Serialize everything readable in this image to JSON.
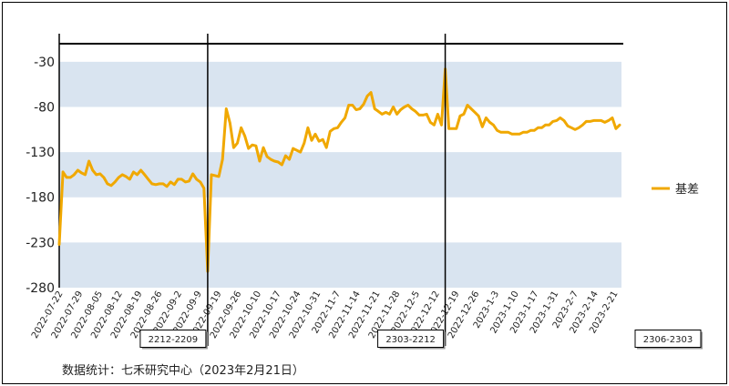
{
  "chart_data": {
    "type": "line",
    "title": "",
    "xlabel": "",
    "ylabel": "",
    "ylim": [
      -280,
      -10
    ],
    "y_ticks": [
      -30,
      -80,
      -130,
      -180,
      -230,
      -280
    ],
    "x_tick_labels": [
      "2022-07-22",
      "2022-07-29",
      "2022-08-05",
      "2022-08-12",
      "2022-08-19",
      "2022-08-26",
      "2022-09-2",
      "2022-09-9",
      "2022-09-19",
      "2022-09-26",
      "2022-10-10",
      "2022-10-17",
      "2022-10-24",
      "2022-10-31",
      "2022-11-7",
      "2022-11-14",
      "2022-11-21",
      "2022-11-28",
      "2022-12-5",
      "2022-12-12",
      "2022-12-19",
      "2022-12-26",
      "2023-1-3",
      "2023-1-10",
      "2023-1-17",
      "2023-1-31",
      "2023-2-7",
      "2023-2-14",
      "2023-2-21"
    ],
    "series": [
      {
        "name": "基差",
        "color": "#f0a800",
        "values": [
          -232,
          -152,
          -158,
          -158,
          -155,
          -150,
          -153,
          -155,
          -140,
          -150,
          -155,
          -154,
          -158,
          -165,
          -167,
          -163,
          -158,
          -155,
          -157,
          -160,
          -152,
          -155,
          -150,
          -155,
          -160,
          -165,
          -166,
          -165,
          -165,
          -168,
          -163,
          -166,
          -160,
          -160,
          -163,
          -162,
          -154,
          -160,
          -163,
          -170,
          -262,
          -155,
          -156,
          -157,
          -138,
          -82,
          -98,
          -125,
          -120,
          -103,
          -112,
          -126,
          -122,
          -123,
          -140,
          -125,
          -135,
          -138,
          -140,
          -141,
          -144,
          -134,
          -138,
          -126,
          -128,
          -130,
          -120,
          -103,
          -117,
          -110,
          -118,
          -116,
          -125,
          -107,
          -104,
          -103,
          -97,
          -92,
          -78,
          -78,
          -83,
          -82,
          -77,
          -68,
          -64,
          -82,
          -85,
          -88,
          -86,
          -88,
          -80,
          -88,
          -83,
          -80,
          -78,
          -82,
          -85,
          -89,
          -89,
          -88,
          -97,
          -100,
          -88,
          -100,
          -38,
          -104,
          -104,
          -104,
          -90,
          -88,
          -78,
          -82,
          -86,
          -90,
          -102,
          -92,
          -97,
          -100,
          -106,
          -108,
          -108,
          -108,
          -110,
          -110,
          -110,
          -108,
          -108,
          -106,
          -106,
          -103,
          -103,
          -100,
          -100,
          -96,
          -95,
          -92,
          -95,
          -101,
          -103,
          -105,
          -103,
          -100,
          -96,
          -96,
          -95,
          -95,
          -95,
          -97,
          -95,
          -92,
          -104,
          -100
        ]
      }
    ],
    "bands": [
      [
        -30,
        -80
      ],
      [
        -130,
        -180
      ],
      [
        -230,
        -280
      ]
    ],
    "band_color": "#d9e4f0",
    "legend_position": "right",
    "contract_markers": [
      {
        "label": "2212-2209",
        "x_index": 40
      },
      {
        "label": "2303-2212",
        "x_index": 104
      },
      {
        "label": "2306-2303",
        "x_index": null
      }
    ]
  },
  "footer": {
    "source": "数据统计：七禾研究中心（2023年2月21日）"
  }
}
